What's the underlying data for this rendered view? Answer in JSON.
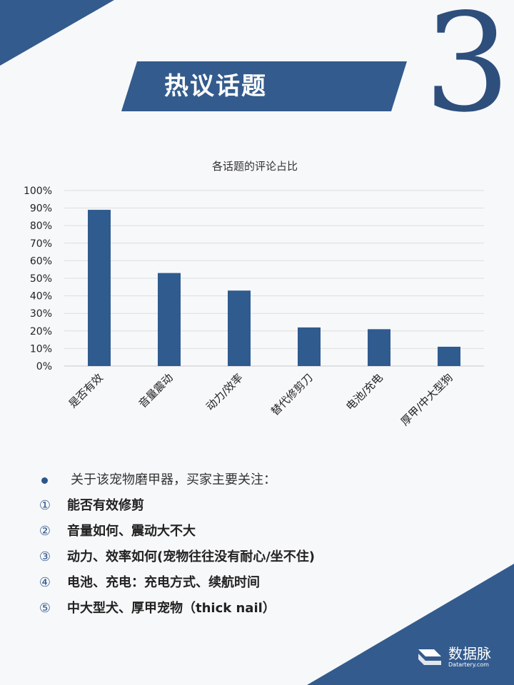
{
  "section": {
    "number": "3",
    "title": "热议话题"
  },
  "chart_data": {
    "type": "bar",
    "title": "各话题的评论占比",
    "categories": [
      "是否有效",
      "音量震动",
      "动力/效率",
      "替代修剪刀",
      "电池/充电",
      "厚甲/中大型狗"
    ],
    "values": [
      0.89,
      0.53,
      0.43,
      0.22,
      0.21,
      0.11
    ],
    "ylim": [
      0,
      1
    ],
    "yticks": [
      "0%",
      "10%",
      "20%",
      "30%",
      "40%",
      "50%",
      "60%",
      "70%",
      "80%",
      "90%",
      "100%"
    ],
    "grid": true,
    "bar_color": "#2f5b8f",
    "xlabel": "",
    "ylabel": ""
  },
  "notes": {
    "intro": "关于该宠物磨甲器，买家主要关注：",
    "items": [
      {
        "marker": "①",
        "text": "能否有效修剪"
      },
      {
        "marker": "②",
        "text": "音量如何、震动大不大"
      },
      {
        "marker": "③",
        "text": "动力、效率如何(宠物往往没有耐心/坐不住)"
      },
      {
        "marker": "④",
        "text": "电池、充电：充电方式、续航时间"
      },
      {
        "marker": "⑤",
        "text": "中大型犬、厚甲宠物（thick nail）"
      }
    ]
  },
  "logo": {
    "name": "数据脉",
    "url": "Datartery.com"
  },
  "colors": {
    "accent": "#335b8d",
    "number": "#2e4f7c",
    "background": "#f7f8fa"
  }
}
